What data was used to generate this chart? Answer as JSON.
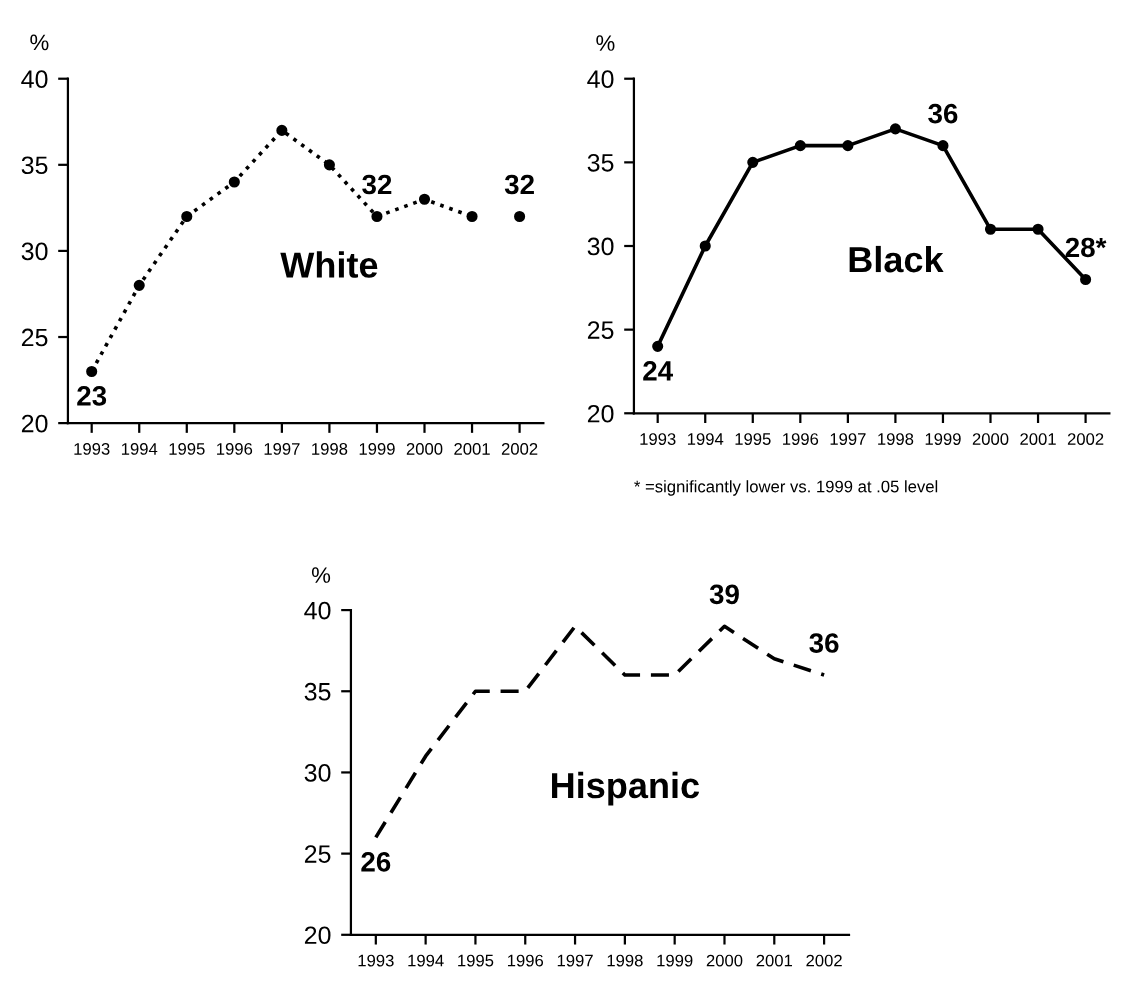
{
  "chart_data": [
    {
      "type": "line",
      "title": "White",
      "ylabel": "%",
      "categories": [
        "1993",
        "1994",
        "1995",
        "1996",
        "1997",
        "1998",
        "1999",
        "2000",
        "2001",
        "2002"
      ],
      "ylim": [
        20,
        40
      ],
      "yticks": [
        20,
        25,
        30,
        35,
        40
      ],
      "grid": false,
      "legend": false,
      "marker": "circle",
      "line_style": "dotted",
      "series": [
        {
          "color": "#000000",
          "values": [
            23,
            28,
            32,
            34,
            37,
            35,
            32,
            33,
            32,
            null
          ]
        },
        {
          "type": "scatter",
          "color": "#000000",
          "values": [
            null,
            null,
            null,
            null,
            null,
            null,
            null,
            null,
            null,
            32
          ]
        }
      ],
      "annotations": [
        {
          "text": "23",
          "x": "1993",
          "y": 23
        },
        {
          "text": "32",
          "x": "1999",
          "y": 32
        },
        {
          "text": "32",
          "x": "2002",
          "y": 32
        }
      ]
    },
    {
      "type": "line",
      "title": "Black",
      "ylabel": "%",
      "categories": [
        "1993",
        "1994",
        "1995",
        "1996",
        "1997",
        "1998",
        "1999",
        "2000",
        "2001",
        "2002"
      ],
      "ylim": [
        20,
        40
      ],
      "yticks": [
        20,
        25,
        30,
        35,
        40
      ],
      "grid": false,
      "legend": false,
      "marker": "circle",
      "line_style": "solid",
      "series": [
        {
          "color": "#000000",
          "values": [
            24,
            30,
            35,
            36,
            36,
            37,
            36,
            31,
            31,
            28
          ]
        }
      ],
      "annotations": [
        {
          "text": "24",
          "x": "1993",
          "y": 24
        },
        {
          "text": "36",
          "x": "1999",
          "y": 36
        },
        {
          "text": "28*",
          "x": "2002",
          "y": 28
        },
        "* =significantly lower vs. 1999 at .05 level"
      ]
    },
    {
      "type": "line",
      "title": "Hispanic",
      "ylabel": "%",
      "categories": [
        "1993",
        "1994",
        "1995",
        "1996",
        "1997",
        "1998",
        "1999",
        "2000",
        "2001",
        "2002"
      ],
      "ylim": [
        20,
        40
      ],
      "yticks": [
        20,
        25,
        30,
        35,
        40
      ],
      "grid": false,
      "legend": false,
      "marker": "none",
      "line_style": "dashed",
      "series": [
        {
          "color": "#000000",
          "values": [
            26,
            31,
            35,
            35,
            39,
            36,
            36,
            39,
            37,
            36
          ]
        }
      ],
      "annotations": [
        {
          "text": "26",
          "x": "1993",
          "y": 26
        },
        {
          "text": "39",
          "x": "2000",
          "y": 39
        },
        {
          "text": "36",
          "x": "2002",
          "y": 36
        }
      ]
    }
  ]
}
